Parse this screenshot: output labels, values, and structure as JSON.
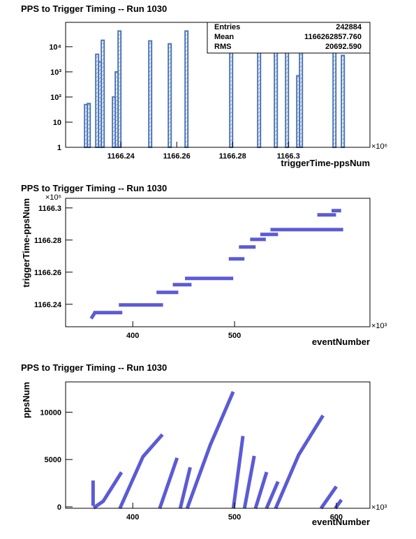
{
  "chart_data": [
    {
      "type": "histogram",
      "title": "PPS to Trigger Timing -- Run 1030",
      "x_label": "triggerTime-ppsNum",
      "x_multiplier": "×10⁶",
      "color": "#4a74b8",
      "log_y": true,
      "bins": [
        1166.227,
        1166.228,
        1166.229,
        1166.23,
        1166.231,
        1166.232,
        1166.233,
        1166.234,
        1166.235,
        1166.236,
        1166.237,
        1166.238,
        1166.239,
        1166.24,
        1166.241,
        1166.242,
        1166.243,
        1166.244,
        1166.245,
        1166.246,
        1166.247,
        1166.248,
        1166.249,
        1166.25,
        1166.251,
        1166.252,
        1166.253,
        1166.254,
        1166.255,
        1166.256,
        1166.257,
        1166.258,
        1166.259,
        1166.26,
        1166.261,
        1166.262,
        1166.263,
        1166.264,
        1166.265,
        1166.266,
        1166.267,
        1166.268,
        1166.269,
        1166.27,
        1166.271,
        1166.272,
        1166.273,
        1166.274,
        1166.275,
        1166.276,
        1166.277,
        1166.278,
        1166.279,
        1166.28,
        1166.281,
        1166.282,
        1166.283,
        1166.284,
        1166.285,
        1166.286,
        1166.287,
        1166.288,
        1166.289,
        1166.29,
        1166.291,
        1166.292,
        1166.293,
        1166.294,
        1166.295,
        1166.296,
        1166.297,
        1166.298,
        1166.299,
        1166.3,
        1166.301,
        1166.302,
        1166.303,
        1166.304,
        1166.305,
        1166.306,
        1166.307,
        1166.308,
        1166.309,
        1166.31,
        1166.311,
        1166.312,
        1166.313,
        1166.314,
        1166.315,
        1166.316,
        1166.317,
        1166.318,
        1166.319,
        1166.32
      ],
      "values": [
        50,
        55,
        0,
        0,
        5000,
        2500,
        18000,
        0,
        0,
        0,
        100,
        1000,
        42000,
        0,
        0,
        0,
        0,
        0,
        0,
        0,
        0,
        0,
        0,
        17000,
        0,
        0,
        0,
        0,
        0,
        0,
        13000,
        0,
        0,
        0,
        0,
        0,
        42000,
        0,
        0,
        0,
        0,
        0,
        0,
        0,
        0,
        0,
        0,
        0,
        0,
        0,
        0,
        0,
        12000,
        0,
        0,
        0,
        0,
        0,
        0,
        0,
        0,
        0,
        12000,
        0,
        0,
        0,
        0,
        0,
        11000,
        0,
        0,
        0,
        11000,
        0,
        0,
        0,
        700,
        50000,
        0,
        0,
        0,
        0,
        0,
        0,
        0,
        0,
        0,
        0,
        0,
        15000,
        0,
        0,
        4500
      ],
      "xlim": [
        1166.2202,
        1166.3292
      ],
      "xticks": [
        1166.24,
        1166.26,
        1166.28,
        1166.3
      ],
      "ylim": [
        1,
        93000
      ],
      "yticks": [
        1,
        10,
        {
          "value": 100,
          "label": "10²"
        },
        {
          "value": 1000,
          "label": "10³"
        },
        {
          "value": 10000,
          "label": "10⁴"
        }
      ],
      "stats": {
        "labels": [
          "Entries",
          "Mean",
          "RMS"
        ],
        "values": [
          242884,
          1166262857.76,
          20692.59
        ],
        "value_labels": [
          "242884",
          "1166262857.760",
          "20692.590"
        ]
      }
    },
    {
      "type": "scatter",
      "title": "PPS to Trigger Timing -- Run 1030",
      "x_label": "eventNumber",
      "y_label": "triggerTime-ppsNum",
      "x_multiplier": "×10³",
      "y_multiplier": "×10⁶",
      "color": "#5b5bd6",
      "x": [
        360,
        362,
        null,
        363,
        388,
        null,
        388,
        428,
        null,
        425,
        443,
        null,
        441,
        456,
        null,
        453,
        497,
        null,
        496,
        508,
        null,
        506,
        519,
        null,
        517,
        529,
        null,
        527,
        541,
        null,
        537,
        605,
        null,
        583,
        598,
        null,
        597,
        603
      ],
      "y": [
        1166.232,
        1166.234,
        null,
        1166.2348,
        1166.2348,
        null,
        1166.2396,
        1166.2396,
        null,
        1166.2474,
        1166.2474,
        null,
        1166.2522,
        1166.2522,
        null,
        1166.2561,
        1166.2561,
        null,
        1166.2683,
        1166.2683,
        null,
        1166.2757,
        1166.2757,
        null,
        1166.2804,
        1166.2804,
        null,
        1166.2835,
        1166.2835,
        null,
        1166.2865,
        1166.2865,
        null,
        1166.2957,
        1166.2957,
        null,
        1166.2983,
        1166.2983
      ],
      "xlim": [
        334,
        633
      ],
      "xticks": [
        400,
        500
      ],
      "ylim": [
        1166.226,
        1166.306
      ],
      "yticks": [
        1166.24,
        1166.26,
        1166.28,
        1166.3
      ]
    },
    {
      "type": "scatter",
      "title": "PPS to Trigger Timing -- Run 1030",
      "x_label": "eventNumber",
      "y_label": "ppsNum",
      "x_multiplier": "×10³",
      "color": "#5b5bd6",
      "x": [
        361,
        361,
        null,
        363,
        371,
        388,
        null,
        388,
        410,
        428,
        null,
        427,
        443,
        null,
        447,
        456,
        null,
        454,
        476,
        498,
        null,
        499,
        508,
        null,
        510,
        519,
        null,
        521,
        531,
        null,
        532,
        542,
        null,
        541,
        563,
        586,
        null,
        586,
        599,
        null,
        600,
        604
      ],
      "y": [
        2600,
        300,
        null,
        0,
        600,
        3500,
        null,
        0,
        5300,
        7500,
        null,
        0,
        5000,
        null,
        0,
        4000,
        null,
        0,
        6500,
        12000,
        null,
        0,
        7300,
        null,
        0,
        5200,
        null,
        0,
        3500,
        null,
        0,
        2500,
        null,
        0,
        5500,
        9500,
        null,
        0,
        2000,
        null,
        0,
        600
      ],
      "xlim": [
        334,
        633
      ],
      "xticks": [
        400,
        500,
        600
      ],
      "ylim": [
        -150,
        13200
      ],
      "yticks": [
        0,
        5000,
        10000
      ]
    }
  ]
}
